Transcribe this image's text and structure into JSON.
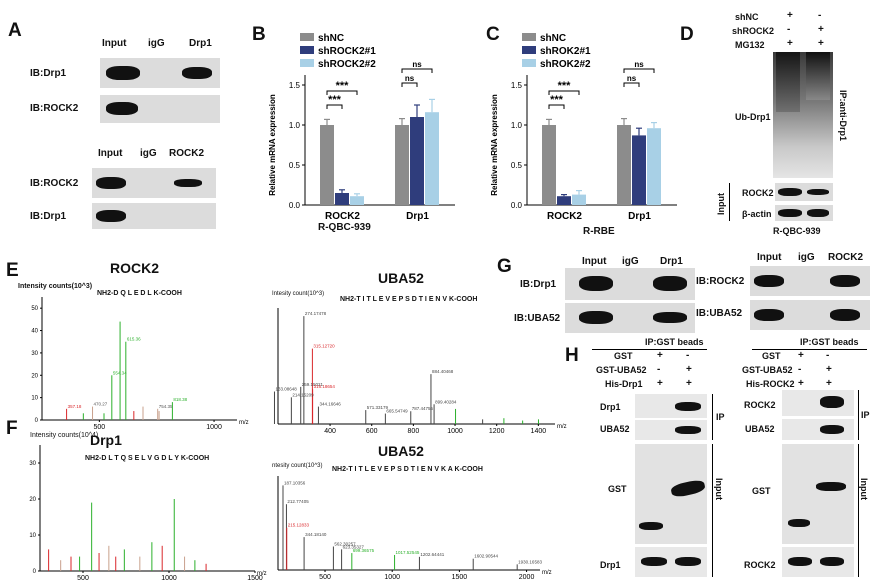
{
  "panels": {
    "A": {
      "label": "A",
      "top": {
        "cols": [
          "Input",
          "igG",
          "Drp1"
        ],
        "rows": [
          "IB:Drp1",
          "IB:ROCK2"
        ]
      },
      "bottom": {
        "cols": [
          "Input",
          "igG",
          "ROCK2"
        ],
        "rows": [
          "IB:ROCK2",
          "IB:Drp1"
        ]
      }
    },
    "B": {
      "label": "B",
      "caption": "R-QBC-939"
    },
    "C": {
      "label": "C",
      "caption": "R-RBE"
    },
    "D": {
      "label": "D",
      "conditions": [
        {
          "name": "shNC",
          "marks": [
            "+",
            "-"
          ]
        },
        {
          "name": "shROCK2",
          "marks": [
            "-",
            "+"
          ]
        },
        {
          "name": "MG132",
          "marks": [
            "+",
            "+"
          ]
        }
      ],
      "ub_label": "Ub-Drp1",
      "ip_label": "IP:anti-Drp1",
      "input_label": "Input",
      "rows": [
        "ROCK2",
        "β-actin"
      ],
      "caption": "R-QBC-939"
    },
    "E": {
      "label": "E",
      "left": {
        "title": "ROCK2",
        "ylabel": "Intensity counts(10^3)",
        "sequence": "NH2-D Q L E D L K-COOH",
        "xunit": "m/z"
      },
      "right": {
        "title": "UBA52",
        "ylabel": "Intesity count(10^3)",
        "sequence": "NH2-T I T L E V E P S D T I E N V K-COOH",
        "xunit": "m/z"
      }
    },
    "F": {
      "label": "F",
      "left": {
        "title": "Drp1",
        "ylabel": "Intensity counts(10^4)",
        "sequence": "NH2-D L T Q S E L V G D L Y K-COOH",
        "xunit": "m/z"
      },
      "right": {
        "title": "UBA52",
        "ylabel": "ntesity count(10^3)",
        "sequence": "NH2-T I T L E V E P S D T I E N V K A K-COOH",
        "xunit": "m/z"
      }
    },
    "G": {
      "label": "G",
      "left": {
        "cols": [
          "Input",
          "igG",
          "Drp1"
        ],
        "rows": [
          "IB:Drp1",
          "IB:UBA52"
        ]
      },
      "right": {
        "cols": [
          "Input",
          "igG",
          "ROCK2"
        ],
        "rows": [
          "IB:ROCK2",
          "IB:UBA52"
        ]
      }
    },
    "H": {
      "label": "H",
      "left": {
        "header": "IP:GST beads",
        "conditions": [
          {
            "name": "GST",
            "marks": [
              "+",
              "-"
            ]
          },
          {
            "name": "GST-UBA52",
            "marks": [
              "-",
              "+"
            ]
          },
          {
            "name": "His-Drp1",
            "marks": [
              "+",
              "+"
            ]
          }
        ],
        "rows": [
          "Drp1",
          "UBA52",
          "GST",
          "Drp1"
        ],
        "ip": "IP",
        "input": "Input"
      },
      "right": {
        "header": "IP:GST beads",
        "conditions": [
          {
            "name": "GST",
            "marks": [
              "+",
              "-"
            ]
          },
          {
            "name": "GST-UBA52",
            "marks": [
              "-",
              "+"
            ]
          },
          {
            "name": "His-ROCK2",
            "marks": [
              "+",
              "+"
            ]
          }
        ],
        "rows": [
          "ROCK2",
          "UBA52",
          "GST",
          "ROCK2"
        ],
        "ip": "IP",
        "input": "Input"
      }
    }
  },
  "chart_data": [
    {
      "type": "bar",
      "panel": "B",
      "categories": [
        "ROCK2",
        "Drp1"
      ],
      "series": [
        {
          "name": "shNC",
          "values": [
            1.0,
            1.0
          ],
          "errors": [
            0.07,
            0.08
          ],
          "color": "#8c8c8c"
        },
        {
          "name": "shROCK2#1",
          "values": [
            0.15,
            1.1
          ],
          "errors": [
            0.04,
            0.15
          ],
          "color": "#2f3d7c"
        },
        {
          "name": "shROCK2#2",
          "values": [
            0.11,
            1.16
          ],
          "errors": [
            0.03,
            0.16
          ],
          "color": "#a8d0e6"
        }
      ],
      "ylabel": "Relative mRNA expression",
      "ylim": [
        0,
        1.5
      ],
      "yticks": [
        "0.0",
        "0.5",
        "1.0",
        "1.5"
      ],
      "annotations": [
        "***",
        "***",
        "ns",
        "ns"
      ]
    },
    {
      "type": "bar",
      "panel": "C",
      "categories": [
        "ROCK2",
        "Drp1"
      ],
      "series": [
        {
          "name": "shNC",
          "values": [
            1.0,
            1.0
          ],
          "errors": [
            0.07,
            0.08
          ],
          "color": "#8c8c8c"
        },
        {
          "name": "shROK2#1",
          "values": [
            0.11,
            0.87
          ],
          "errors": [
            0.02,
            0.09
          ],
          "color": "#2f3d7c"
        },
        {
          "name": "shROK2#2",
          "values": [
            0.13,
            0.96
          ],
          "errors": [
            0.05,
            0.07
          ],
          "color": "#a8d0e6"
        }
      ],
      "ylabel": "Relative mRNA expression",
      "ylim": [
        0,
        1.5
      ],
      "yticks": [
        "0.0",
        "0.5",
        "1.0",
        "1.5"
      ],
      "annotations": [
        "***",
        "***",
        "ns",
        "ns"
      ]
    },
    {
      "type": "bar",
      "panel": "E-left",
      "x": [
        357.18,
        470.27,
        554.34,
        615.36,
        754.35,
        818.38,
        650.29,
        760.4,
        430.2,
        520.3,
        690.3,
        590.3
      ],
      "values": [
        5,
        6,
        20,
        35,
        5,
        8,
        4,
        4,
        3,
        3,
        6,
        44
      ],
      "xticks": [
        "500",
        "1000"
      ],
      "yticks": [
        "0",
        "10",
        "20",
        "30",
        "40",
        "50"
      ],
      "xlim": [
        250,
        1100
      ],
      "ylim": [
        0,
        55
      ],
      "peak_labels": [
        "357.18",
        "470.27",
        "554.34",
        "615.36",
        "754.35",
        "818.38"
      ]
    },
    {
      "type": "bar",
      "panel": "E-right",
      "x": [
        274.17478,
        315.1272,
        259.15021,
        316.18654,
        133.08648,
        214.15209,
        344.16646,
        571.33179,
        665.54749,
        787.44755,
        899.40284,
        884.40468,
        1002.43138,
        1132.49608,
        1234.6,
        1324.6,
        1400.7
      ],
      "values": [
        9.3,
        6.5,
        3.2,
        3.0,
        2.8,
        2.3,
        1.5,
        1.2,
        0.9,
        1.1,
        1.7,
        4.3,
        1.3,
        0.4,
        0.5,
        0.3,
        0.4
      ],
      "xticks": [
        "400",
        "600",
        "800",
        "1000",
        "1200",
        "1400"
      ],
      "xlim": [
        150,
        1480
      ],
      "peak_labels": [
        "274.17478",
        "315.12720",
        "259.15021",
        "316.18654",
        "133.08648",
        "214.15209",
        "344.16646",
        "571.33179",
        "665.54749",
        "787.44755",
        "899.40284",
        "884.40468"
      ]
    },
    {
      "type": "bar",
      "panel": "F-left",
      "x": [
        300.1,
        370.2,
        430.2,
        480.2,
        550.3,
        593.3,
        650.3,
        690.3,
        740.3,
        830.4,
        900.4,
        960.4,
        1030.5,
        1090.5,
        1150.5,
        1215.6
      ],
      "values": [
        6,
        3,
        4,
        4,
        19,
        5,
        7,
        4,
        6,
        4,
        8,
        7,
        20,
        4,
        3,
        2
      ],
      "xticks": [
        "500",
        "1000",
        "1500"
      ],
      "yticks": [
        "0",
        "10",
        "20",
        "30"
      ],
      "xlim": [
        250,
        1500
      ],
      "ylim": [
        0,
        35
      ]
    },
    {
      "type": "bar",
      "panel": "F-right",
      "x": [
        187.10356,
        212.77405,
        215.12833,
        344.1814,
        562.30257,
        623.35327,
        699.36575,
        1017.52545,
        1202.64441,
        1602.90544,
        1930.16583
      ],
      "values": [
        9.0,
        7.0,
        4.5,
        3.5,
        2.5,
        2.2,
        1.8,
        1.6,
        1.4,
        1.2,
        0.6
      ],
      "xticks": [
        "500",
        "1000",
        "1500",
        "2000"
      ],
      "xlim": [
        150,
        2100
      ],
      "peak_labels": [
        "187.10356",
        "212.77405",
        "215.12833",
        "344.18140",
        "562.30257",
        "623.35327",
        "699.36575",
        "1017.52545",
        "1202.64441",
        "1602.90544",
        "1930.16583"
      ]
    }
  ]
}
